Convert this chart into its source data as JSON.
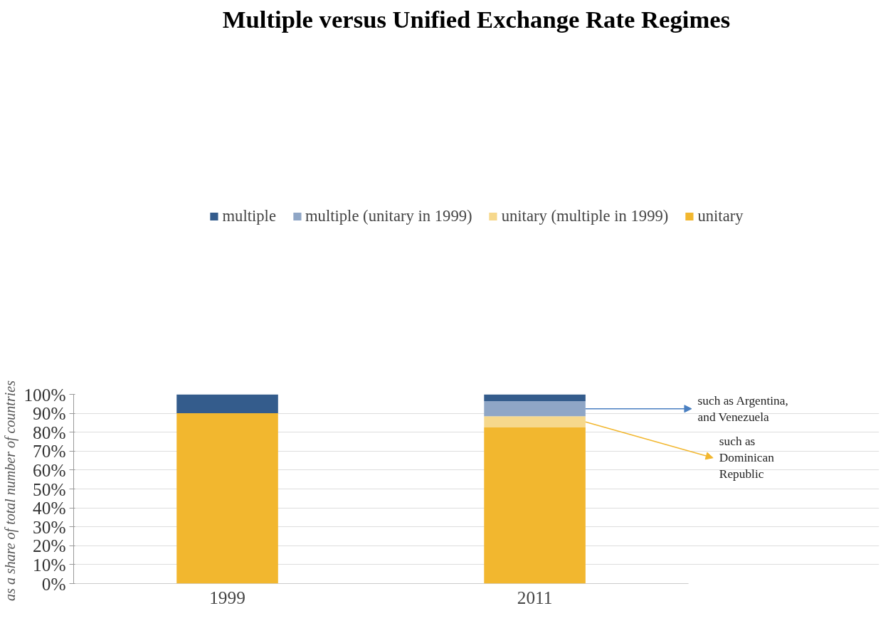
{
  "chart_data": {
    "type": "bar",
    "title": "Multiple versus Unified Exchange Rate Regimes",
    "ylabel": "as a share of  total number of countries",
    "categories": [
      "1999",
      "2011"
    ],
    "stacked": true,
    "series": [
      {
        "name": "unitary",
        "color": "#f2b72f",
        "values": [
          90,
          82.5
        ]
      },
      {
        "name": "unitary (multiple in 1999)",
        "color": "#f6d88c",
        "values": [
          0,
          5.9
        ]
      },
      {
        "name": "multiple (unitary in 1999)",
        "color": "#8fa6c6",
        "values": [
          0,
          8
        ]
      },
      {
        "name": "multiple",
        "color": "#345c8c",
        "values": [
          10,
          3.6
        ]
      }
    ],
    "ylim": [
      0,
      100
    ],
    "yticks": [
      {
        "value": 0,
        "label": "0%"
      },
      {
        "value": 10,
        "label": "10%"
      },
      {
        "value": 20,
        "label": "20%"
      },
      {
        "value": 30,
        "label": "30%"
      },
      {
        "value": 40,
        "label": "40%"
      },
      {
        "value": 50,
        "label": "50%"
      },
      {
        "value": 60,
        "label": "60%"
      },
      {
        "value": 70,
        "label": "70%"
      },
      {
        "value": 80,
        "label": "80%"
      },
      {
        "value": 90,
        "label": "90%"
      },
      {
        "value": 100,
        "label": "100%"
      }
    ],
    "grid": "y",
    "legend": "top",
    "annotations": [
      "such as Argentina,\nand Venezuela",
      "such as\nDominican\nRepublic"
    ]
  }
}
